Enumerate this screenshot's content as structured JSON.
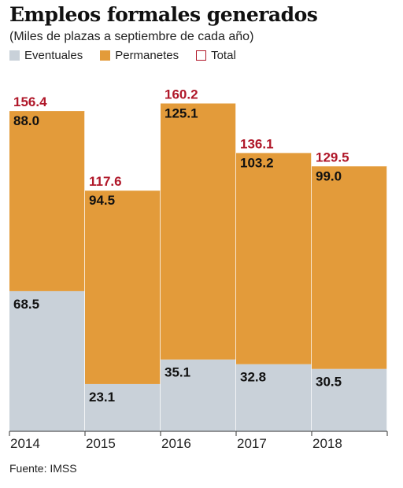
{
  "header": {
    "title": "Empleos formales generados",
    "subtitle": "(Miles de plazas a septiembre de cada año)"
  },
  "legend": {
    "eventuales": "Eventuales",
    "permanentes": "Permanetes",
    "total": "Total"
  },
  "source": "Fuente: IMSS",
  "colors": {
    "eventuales": "#c9d1d9",
    "permanentes": "#e39b3a",
    "total_label": "#b0182a",
    "value_label": "#111111"
  },
  "chart_data": {
    "type": "bar",
    "stacked": true,
    "categories": [
      "2014",
      "2015",
      "2016",
      "2017",
      "2018"
    ],
    "series": [
      {
        "name": "Eventuales",
        "values": [
          68.5,
          23.1,
          35.1,
          32.8,
          30.5
        ]
      },
      {
        "name": "Permanetes",
        "values": [
          88.0,
          94.5,
          125.1,
          103.2,
          99.0
        ]
      }
    ],
    "totals": [
      156.4,
      117.6,
      160.2,
      136.1,
      129.5
    ],
    "totals_labels": [
      "156.4",
      "117.6",
      "160.2",
      "136.1",
      "129.5"
    ],
    "eventuales_labels": [
      "68.5",
      "23.1",
      "35.1",
      "32.8",
      "30.5"
    ],
    "permanentes_labels": [
      "88.0",
      "94.5",
      "125.1",
      "103.2",
      "99.0"
    ],
    "ylim": [
      0,
      170
    ],
    "grid": false,
    "legend_position": "top-left"
  }
}
